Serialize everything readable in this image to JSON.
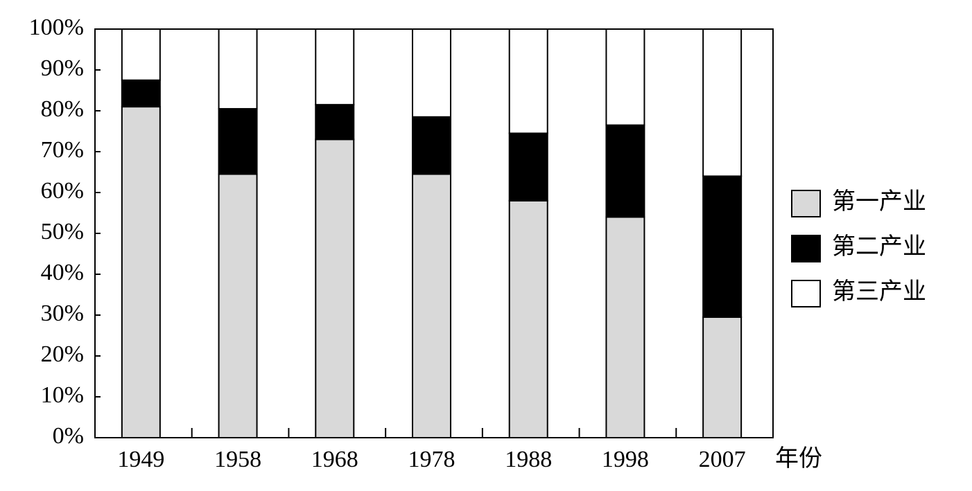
{
  "chart_data": {
    "type": "stacked_bar",
    "xlabel": "年份",
    "categories": [
      "1949",
      "1958",
      "1968",
      "1978",
      "1988",
      "1998",
      "2007"
    ],
    "series": [
      {
        "name": "第一产业",
        "color": "#d9d9d9",
        "values": [
          81,
          64.5,
          73,
          64.5,
          58,
          54,
          29.5
        ]
      },
      {
        "name": "第二产业",
        "color": "#000000",
        "values": [
          6.5,
          16,
          8.5,
          14,
          16.5,
          22.5,
          34.5
        ]
      },
      {
        "name": "第三产业",
        "color": "#ffffff",
        "values": [
          12.5,
          19.5,
          18.5,
          21.5,
          25.5,
          23.5,
          36
        ]
      }
    ],
    "ylim": [
      0,
      100
    ],
    "yticks": [
      {
        "value": 0,
        "label": "0%"
      },
      {
        "value": 10,
        "label": "10%"
      },
      {
        "value": 20,
        "label": "20%"
      },
      {
        "value": 30,
        "label": "30%"
      },
      {
        "value": 40,
        "label": "40%"
      },
      {
        "value": 50,
        "label": "50%"
      },
      {
        "value": 60,
        "label": "60%"
      },
      {
        "value": 70,
        "label": "70%"
      },
      {
        "value": 80,
        "label": "80%"
      },
      {
        "value": 90,
        "label": "90%"
      },
      {
        "value": 100,
        "label": "100%"
      }
    ],
    "legend": "right"
  }
}
